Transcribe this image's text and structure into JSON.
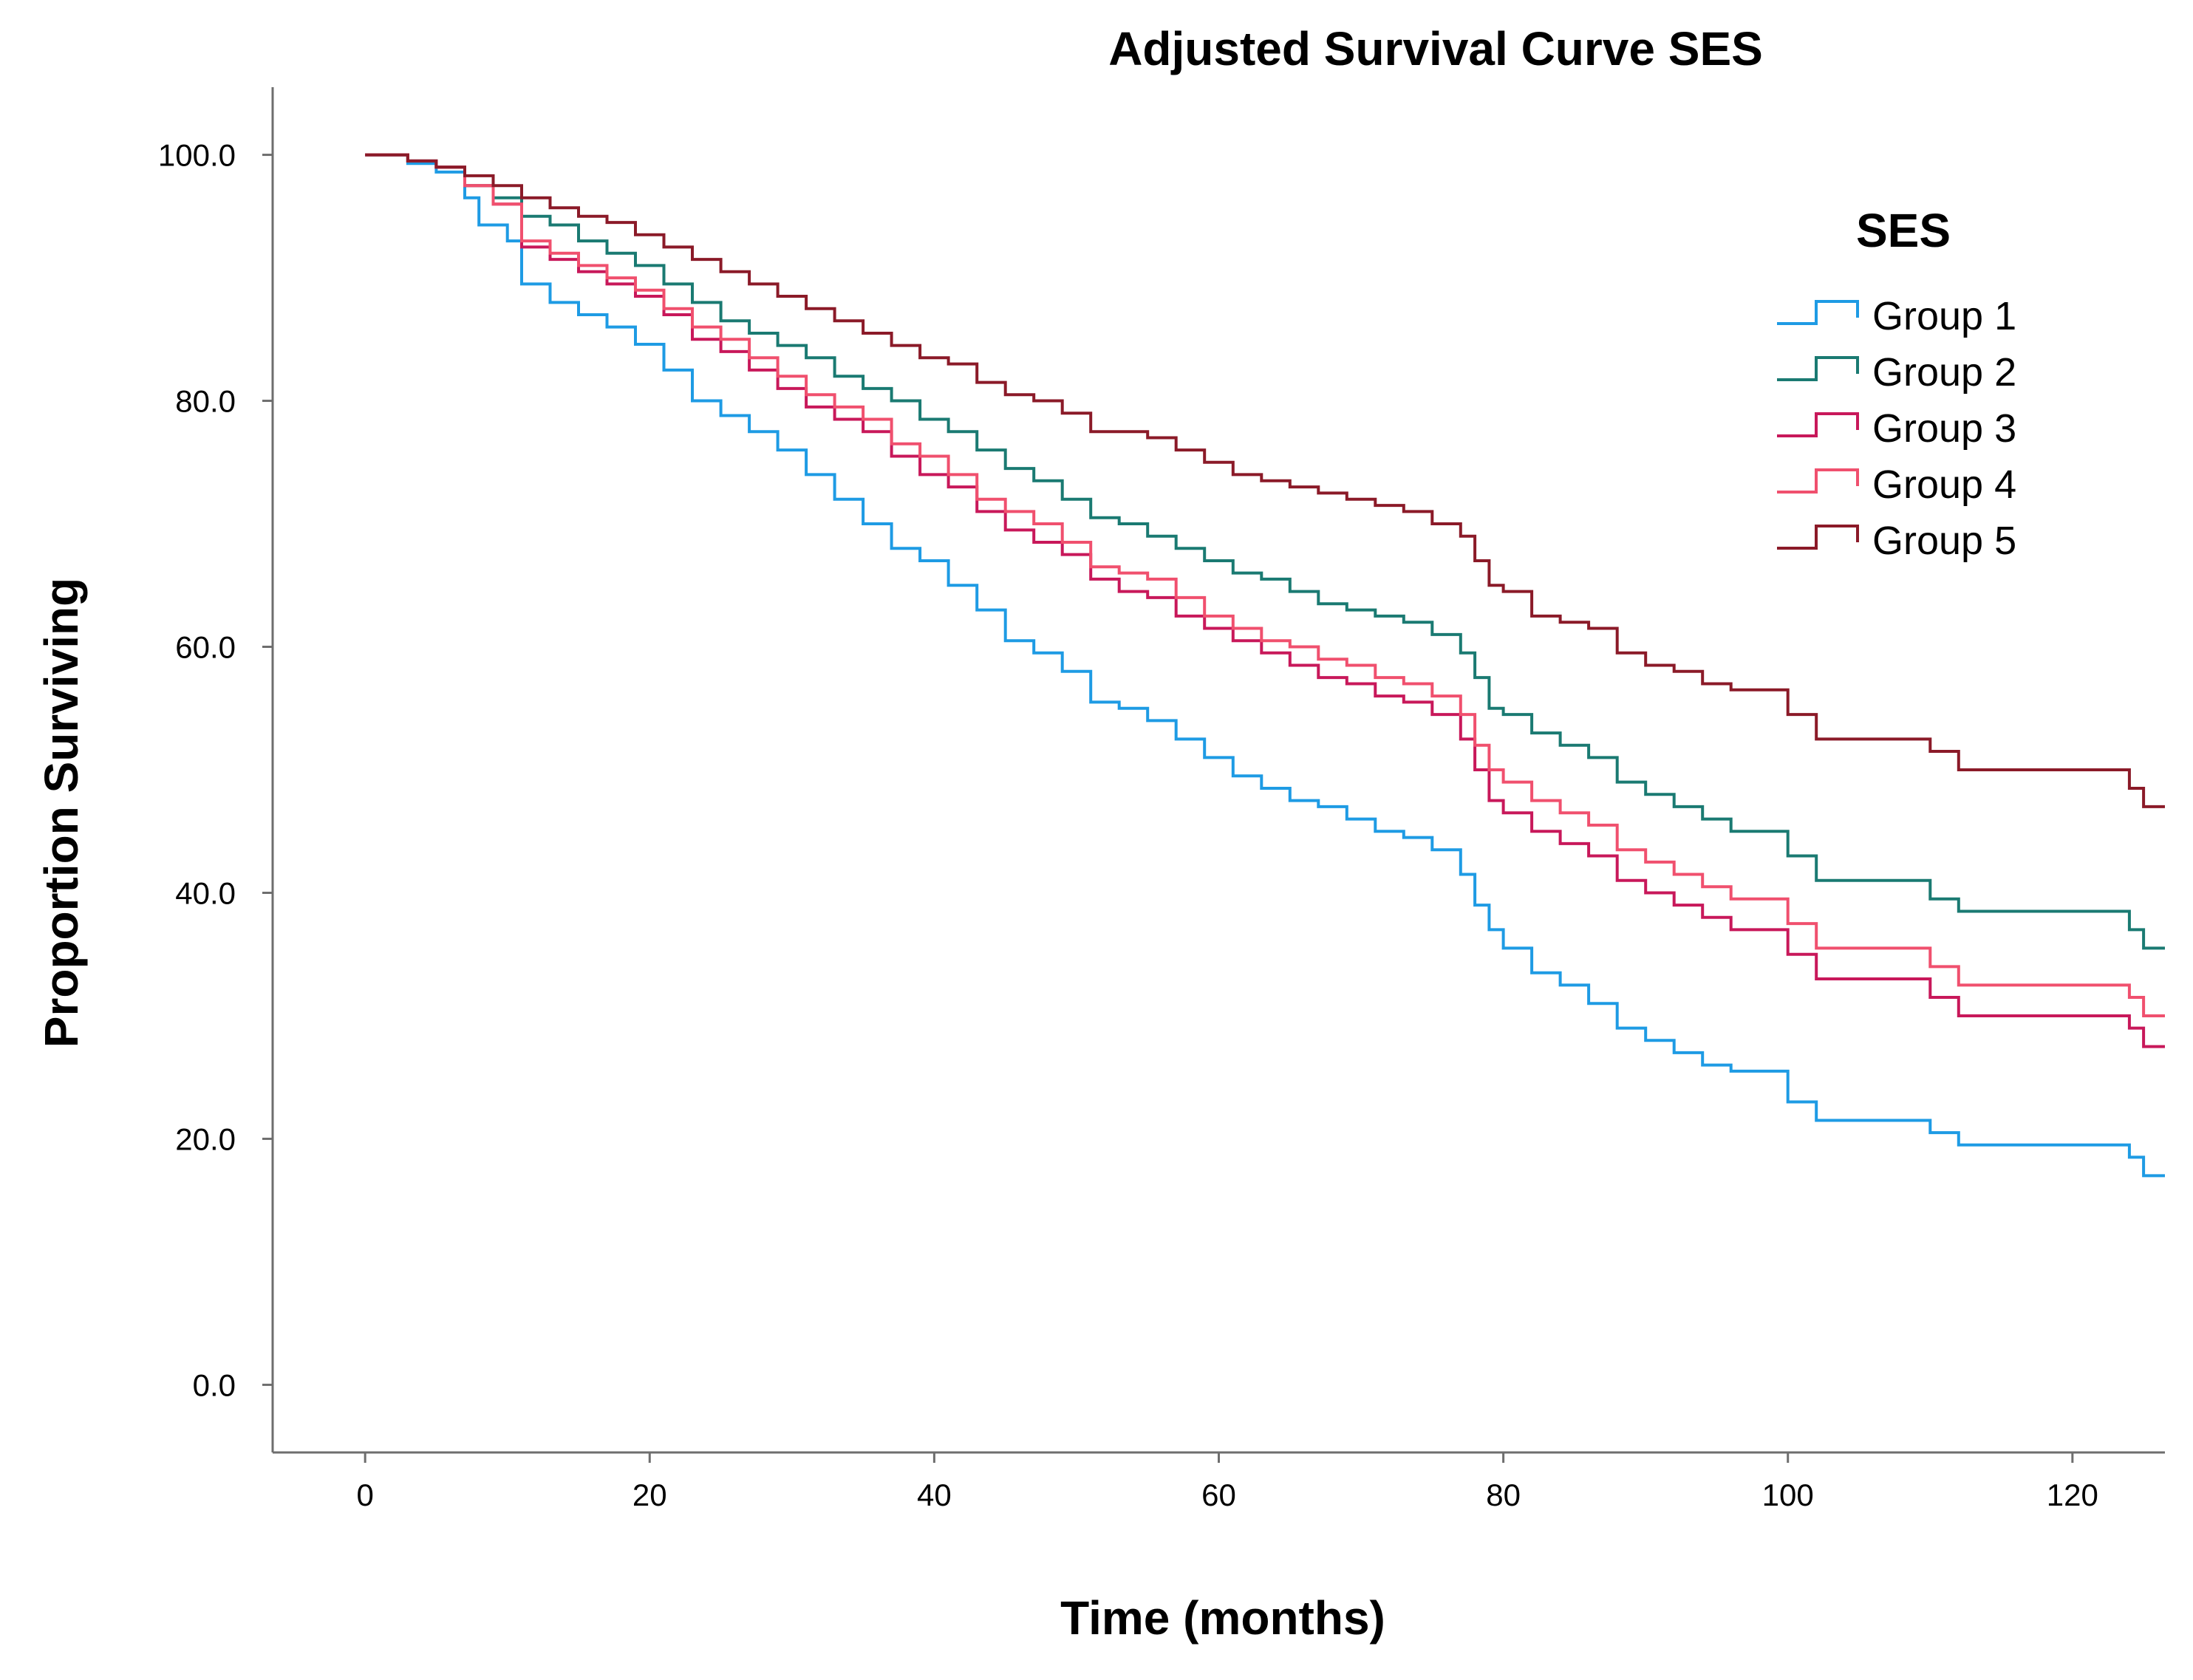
{
  "chart_data": {
    "type": "line",
    "step": true,
    "title": "Adjusted Survival Curve SES",
    "xlabel": "Time (months)",
    "ylabel": "Proportion Surviving",
    "xlim": [
      -6.5,
      126.5
    ],
    "ylim": [
      -5.5,
      105.5
    ],
    "xticks": [
      0,
      20,
      40,
      60,
      80,
      100,
      120
    ],
    "xtick_labels": [
      "0",
      "20",
      "40",
      "60",
      "80",
      "100",
      "120"
    ],
    "yticks": [
      0,
      20,
      40,
      60,
      80,
      100
    ],
    "ytick_labels": [
      "0.0",
      "20.0",
      "40.0",
      "60.0",
      "80.0",
      "100.0"
    ],
    "grid": false,
    "legend": {
      "title": "SES",
      "position": "top-right"
    },
    "series": [
      {
        "name": "Group 1",
        "color": "#1e9be4",
        "points": [
          [
            0,
            100
          ],
          [
            3,
            99.3
          ],
          [
            5,
            98.6
          ],
          [
            7,
            96.5
          ],
          [
            8,
            94.3
          ],
          [
            10,
            93
          ],
          [
            11,
            89.5
          ],
          [
            13,
            88
          ],
          [
            15,
            87
          ],
          [
            17,
            86
          ],
          [
            19,
            84.6
          ],
          [
            21,
            82.5
          ],
          [
            23,
            80
          ],
          [
            25,
            78.8
          ],
          [
            27,
            77.5
          ],
          [
            29,
            76
          ],
          [
            31,
            74
          ],
          [
            33,
            72
          ],
          [
            35,
            70
          ],
          [
            37,
            68
          ],
          [
            39,
            67
          ],
          [
            41,
            65
          ],
          [
            43,
            63
          ],
          [
            45,
            60.5
          ],
          [
            47,
            59.5
          ],
          [
            49,
            58
          ],
          [
            51,
            55.5
          ],
          [
            53,
            55
          ],
          [
            55,
            54
          ],
          [
            57,
            52.5
          ],
          [
            59,
            51
          ],
          [
            61,
            49.5
          ],
          [
            63,
            48.5
          ],
          [
            65,
            47.5
          ],
          [
            67,
            47
          ],
          [
            69,
            46
          ],
          [
            71,
            45
          ],
          [
            73,
            44.5
          ],
          [
            75,
            43.5
          ],
          [
            77,
            41.5
          ],
          [
            78,
            39
          ],
          [
            79,
            37
          ],
          [
            80,
            35.5
          ],
          [
            82,
            33.5
          ],
          [
            84,
            32.5
          ],
          [
            86,
            31
          ],
          [
            88,
            29
          ],
          [
            90,
            28
          ],
          [
            92,
            27
          ],
          [
            94,
            26
          ],
          [
            96,
            25.5
          ],
          [
            99,
            25.5
          ],
          [
            100,
            23
          ],
          [
            102,
            21.5
          ],
          [
            105,
            21.5
          ],
          [
            108,
            21.5
          ],
          [
            110,
            20.5
          ],
          [
            112,
            19.5
          ],
          [
            115,
            19.5
          ],
          [
            118,
            19.5
          ],
          [
            121,
            19.5
          ],
          [
            124,
            18.5
          ],
          [
            125,
            17
          ],
          [
            126.5,
            17
          ]
        ]
      },
      {
        "name": "Group 2",
        "color": "#1a7a72",
        "points": [
          [
            0,
            100
          ],
          [
            3,
            99.5
          ],
          [
            5,
            99
          ],
          [
            7,
            97.5
          ],
          [
            9,
            96.5
          ],
          [
            11,
            95
          ],
          [
            13,
            94.3
          ],
          [
            15,
            93
          ],
          [
            17,
            92
          ],
          [
            19,
            91
          ],
          [
            21,
            89.5
          ],
          [
            23,
            88
          ],
          [
            25,
            86.5
          ],
          [
            27,
            85.5
          ],
          [
            29,
            84.5
          ],
          [
            31,
            83.5
          ],
          [
            33,
            82
          ],
          [
            35,
            81
          ],
          [
            37,
            80
          ],
          [
            39,
            78.5
          ],
          [
            41,
            77.5
          ],
          [
            43,
            76
          ],
          [
            45,
            74.5
          ],
          [
            47,
            73.5
          ],
          [
            49,
            72
          ],
          [
            51,
            70.5
          ],
          [
            53,
            70
          ],
          [
            55,
            69
          ],
          [
            57,
            68
          ],
          [
            59,
            67
          ],
          [
            61,
            66
          ],
          [
            63,
            65.5
          ],
          [
            65,
            64.5
          ],
          [
            67,
            63.5
          ],
          [
            69,
            63
          ],
          [
            71,
            62.5
          ],
          [
            73,
            62
          ],
          [
            75,
            61
          ],
          [
            77,
            59.5
          ],
          [
            78,
            57.5
          ],
          [
            79,
            55
          ],
          [
            80,
            54.5
          ],
          [
            82,
            53
          ],
          [
            84,
            52
          ],
          [
            86,
            51
          ],
          [
            88,
            49
          ],
          [
            90,
            48
          ],
          [
            92,
            47
          ],
          [
            94,
            46
          ],
          [
            96,
            45
          ],
          [
            99,
            45
          ],
          [
            100,
            43
          ],
          [
            102,
            41
          ],
          [
            105,
            41
          ],
          [
            108,
            41
          ],
          [
            110,
            39.5
          ],
          [
            112,
            38.5
          ],
          [
            115,
            38.5
          ],
          [
            118,
            38.5
          ],
          [
            121,
            38.5
          ],
          [
            124,
            37
          ],
          [
            125,
            35.5
          ],
          [
            126.5,
            35.5
          ]
        ]
      },
      {
        "name": "Group 3",
        "color": "#c8185a",
        "points": [
          [
            0,
            100
          ],
          [
            3,
            99.5
          ],
          [
            5,
            99
          ],
          [
            7,
            97.5
          ],
          [
            9,
            96
          ],
          [
            11,
            92.5
          ],
          [
            13,
            91.5
          ],
          [
            15,
            90.5
          ],
          [
            17,
            89.5
          ],
          [
            19,
            88.5
          ],
          [
            21,
            87
          ],
          [
            23,
            85
          ],
          [
            25,
            84
          ],
          [
            27,
            82.5
          ],
          [
            29,
            81
          ],
          [
            31,
            79.5
          ],
          [
            33,
            78.5
          ],
          [
            35,
            77.5
          ],
          [
            37,
            75.5
          ],
          [
            39,
            74
          ],
          [
            41,
            73
          ],
          [
            43,
            71
          ],
          [
            45,
            69.5
          ],
          [
            47,
            68.5
          ],
          [
            49,
            67.5
          ],
          [
            51,
            65.5
          ],
          [
            53,
            64.5
          ],
          [
            55,
            64
          ],
          [
            57,
            62.5
          ],
          [
            59,
            61.5
          ],
          [
            61,
            60.5
          ],
          [
            63,
            59.5
          ],
          [
            65,
            58.5
          ],
          [
            67,
            57.5
          ],
          [
            69,
            57
          ],
          [
            71,
            56
          ],
          [
            73,
            55.5
          ],
          [
            75,
            54.5
          ],
          [
            77,
            52.5
          ],
          [
            78,
            50
          ],
          [
            79,
            47.5
          ],
          [
            80,
            46.5
          ],
          [
            82,
            45
          ],
          [
            84,
            44
          ],
          [
            86,
            43
          ],
          [
            88,
            41
          ],
          [
            90,
            40
          ],
          [
            92,
            39
          ],
          [
            94,
            38
          ],
          [
            96,
            37
          ],
          [
            99,
            37
          ],
          [
            100,
            35
          ],
          [
            102,
            33
          ],
          [
            105,
            33
          ],
          [
            108,
            33
          ],
          [
            110,
            31.5
          ],
          [
            112,
            30
          ],
          [
            115,
            30
          ],
          [
            118,
            30
          ],
          [
            121,
            30
          ],
          [
            124,
            29
          ],
          [
            125,
            27.5
          ],
          [
            126.5,
            27.5
          ]
        ]
      },
      {
        "name": "Group 4",
        "color": "#f0506e",
        "points": [
          [
            0,
            100
          ],
          [
            3,
            99.5
          ],
          [
            5,
            99
          ],
          [
            7,
            97.5
          ],
          [
            9,
            96
          ],
          [
            11,
            93
          ],
          [
            13,
            92
          ],
          [
            15,
            91
          ],
          [
            17,
            90
          ],
          [
            19,
            89
          ],
          [
            21,
            87.5
          ],
          [
            23,
            86
          ],
          [
            25,
            85
          ],
          [
            27,
            83.5
          ],
          [
            29,
            82
          ],
          [
            31,
            80.5
          ],
          [
            33,
            79.5
          ],
          [
            35,
            78.5
          ],
          [
            37,
            76.5
          ],
          [
            39,
            75.5
          ],
          [
            41,
            74
          ],
          [
            43,
            72
          ],
          [
            45,
            71
          ],
          [
            47,
            70
          ],
          [
            49,
            68.5
          ],
          [
            51,
            66.5
          ],
          [
            53,
            66
          ],
          [
            55,
            65.5
          ],
          [
            57,
            64
          ],
          [
            59,
            62.5
          ],
          [
            61,
            61.5
          ],
          [
            63,
            60.5
          ],
          [
            65,
            60
          ],
          [
            67,
            59
          ],
          [
            69,
            58.5
          ],
          [
            71,
            57.5
          ],
          [
            73,
            57
          ],
          [
            75,
            56
          ],
          [
            77,
            54.5
          ],
          [
            78,
            52
          ],
          [
            79,
            50
          ],
          [
            80,
            49
          ],
          [
            82,
            47.5
          ],
          [
            84,
            46.5
          ],
          [
            86,
            45.5
          ],
          [
            88,
            43.5
          ],
          [
            90,
            42.5
          ],
          [
            92,
            41.5
          ],
          [
            94,
            40.5
          ],
          [
            96,
            39.5
          ],
          [
            99,
            39.5
          ],
          [
            100,
            37.5
          ],
          [
            102,
            35.5
          ],
          [
            105,
            35.5
          ],
          [
            108,
            35.5
          ],
          [
            110,
            34
          ],
          [
            112,
            32.5
          ],
          [
            115,
            32.5
          ],
          [
            118,
            32.5
          ],
          [
            121,
            32.5
          ],
          [
            124,
            31.5
          ],
          [
            125,
            30
          ],
          [
            126.5,
            30
          ]
        ]
      },
      {
        "name": "Group 5",
        "color": "#8b1a28",
        "points": [
          [
            0,
            100
          ],
          [
            3,
            99.5
          ],
          [
            5,
            99
          ],
          [
            7,
            98.3
          ],
          [
            9,
            97.5
          ],
          [
            11,
            96.5
          ],
          [
            13,
            95.7
          ],
          [
            15,
            95
          ],
          [
            17,
            94.5
          ],
          [
            19,
            93.5
          ],
          [
            21,
            92.5
          ],
          [
            23,
            91.5
          ],
          [
            25,
            90.5
          ],
          [
            27,
            89.5
          ],
          [
            29,
            88.5
          ],
          [
            31,
            87.5
          ],
          [
            33,
            86.5
          ],
          [
            35,
            85.5
          ],
          [
            37,
            84.5
          ],
          [
            39,
            83.5
          ],
          [
            41,
            83
          ],
          [
            43,
            81.5
          ],
          [
            45,
            80.5
          ],
          [
            47,
            80
          ],
          [
            49,
            79
          ],
          [
            51,
            77.5
          ],
          [
            53,
            77.5
          ],
          [
            55,
            77
          ],
          [
            57,
            76
          ],
          [
            59,
            75
          ],
          [
            61,
            74
          ],
          [
            63,
            73.5
          ],
          [
            65,
            73
          ],
          [
            67,
            72.5
          ],
          [
            69,
            72
          ],
          [
            71,
            71.5
          ],
          [
            73,
            71
          ],
          [
            75,
            70
          ],
          [
            77,
            69
          ],
          [
            78,
            67
          ],
          [
            79,
            65
          ],
          [
            80,
            64.5
          ],
          [
            82,
            62.5
          ],
          [
            84,
            62
          ],
          [
            86,
            61.5
          ],
          [
            88,
            59.5
          ],
          [
            90,
            58.5
          ],
          [
            92,
            58
          ],
          [
            94,
            57
          ],
          [
            96,
            56.5
          ],
          [
            99,
            56.5
          ],
          [
            100,
            54.5
          ],
          [
            102,
            52.5
          ],
          [
            105,
            52.5
          ],
          [
            108,
            52.5
          ],
          [
            110,
            51.5
          ],
          [
            112,
            50
          ],
          [
            115,
            50
          ],
          [
            118,
            50
          ],
          [
            121,
            50
          ],
          [
            124,
            48.5
          ],
          [
            125,
            47
          ],
          [
            126.5,
            47
          ]
        ]
      }
    ]
  }
}
